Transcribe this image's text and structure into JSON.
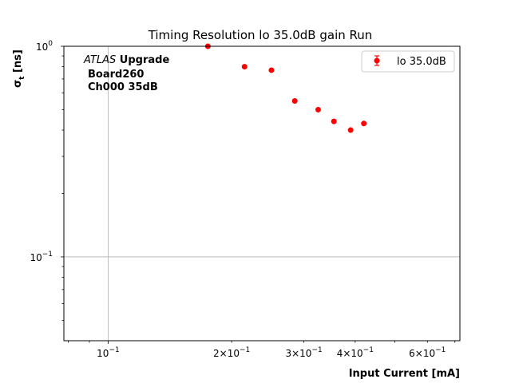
{
  "chart_data": {
    "type": "scatter",
    "title": "Timing Resolution lo 35.0dB gain Run",
    "xlabel": "Input Current [mA]",
    "ylabel_main": "σ",
    "ylabel_sub": "t",
    "ylabel_unit": " [ns]",
    "xscale": "log",
    "yscale": "log",
    "xlim": [
      0.078,
      0.72
    ],
    "ylim": [
      0.04,
      1.0
    ],
    "grid": true,
    "legend_placement": "top-right",
    "series": [
      {
        "name": "lo 35.0dB",
        "color": "#ff0000",
        "marker": "circle",
        "x": [
          0.175,
          0.215,
          0.25,
          0.285,
          0.325,
          0.355,
          0.39,
          0.42
        ],
        "y": [
          1.0,
          0.8,
          0.77,
          0.55,
          0.5,
          0.44,
          0.4,
          0.43
        ]
      }
    ],
    "x_ticks": [
      {
        "value": 0.1,
        "base": "10",
        "exp": "−1"
      },
      {
        "value": 0.2,
        "base": "2×10",
        "exp": "−1"
      },
      {
        "value": 0.3,
        "base": "3×10",
        "exp": "−1"
      },
      {
        "value": 0.4,
        "base": "4×10",
        "exp": "−1"
      },
      {
        "value": 0.6,
        "base": "6×10",
        "exp": "−1"
      }
    ],
    "x_minor_ticks": [
      0.08,
      0.09,
      0.5,
      0.7
    ],
    "y_ticks": [
      {
        "value": 0.1,
        "base": "10",
        "exp": "−1"
      },
      {
        "value": 1.0,
        "base": "10",
        "exp": "0"
      }
    ],
    "y_minor_ticks": [
      0.05,
      0.06,
      0.07,
      0.08,
      0.09,
      0.2,
      0.3,
      0.4,
      0.5,
      0.6,
      0.7,
      0.8,
      0.9
    ],
    "annotations": {
      "atlas": "ATLAS",
      "upgrade": " Upgrade",
      "board": "Board260",
      "channel": "Ch000 35dB"
    }
  }
}
